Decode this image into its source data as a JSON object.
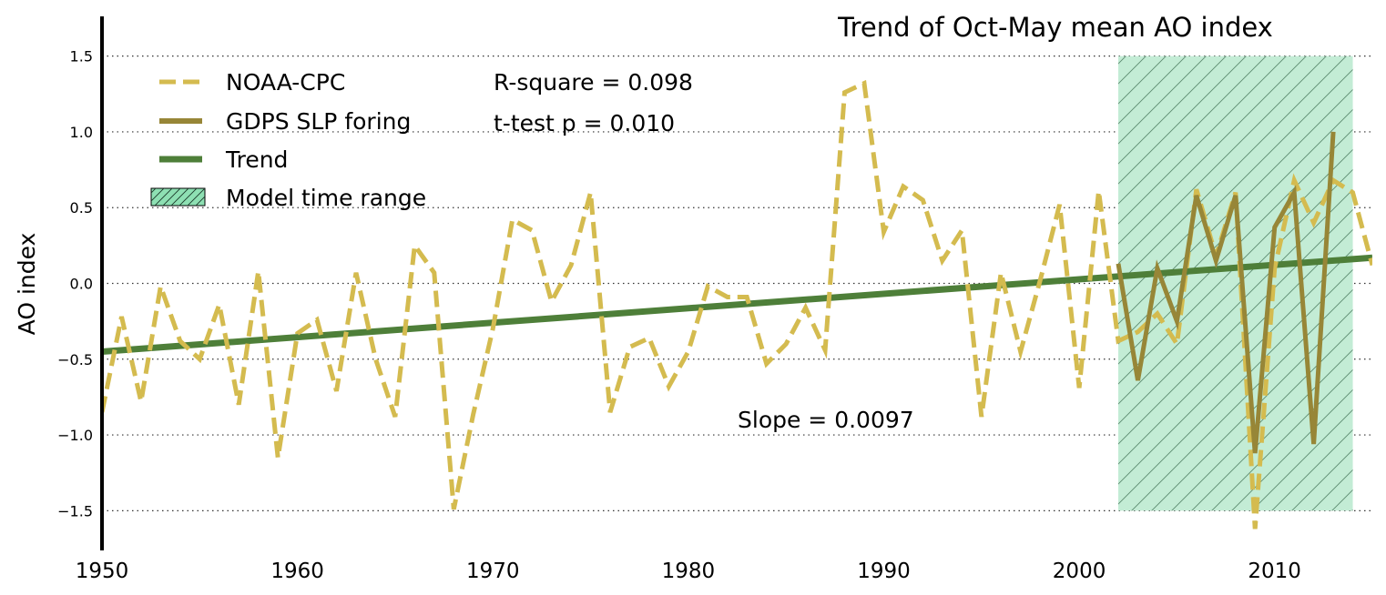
{
  "chart_data": {
    "type": "line",
    "title": "Trend of Oct-May mean AO index",
    "ylabel": "AO index",
    "xlabel": "",
    "xlim": [
      1950,
      2015
    ],
    "ylim": [
      -1.75,
      1.75
    ],
    "x_ticks": [
      1950,
      1960,
      1970,
      1980,
      1990,
      2000,
      2010
    ],
    "x_tick_labels": [
      "1950",
      "1960",
      "1970",
      "1980",
      "1990",
      "2000",
      "2010"
    ],
    "y_ticks": [
      1.5,
      1.0,
      0.5,
      0.0,
      -0.5,
      -1.0,
      -1.5
    ],
    "y_tick_labels": [
      "1.5",
      "1.0",
      "0.5",
      "0.0",
      "−0.5",
      "−1.0",
      "−1.5"
    ],
    "grid": "horizontal dotted",
    "legend_position": "top-left",
    "colors": {
      "noaa": "#d4bb4f",
      "gdps": "#978637",
      "trend": "#4e7f39",
      "model_fill": "#c3ecd5",
      "model_patch": "#8ee0b3"
    },
    "series": [
      {
        "name": "NOAA-CPC",
        "style": "dashed",
        "x": [
          1950,
          1951,
          1952,
          1953,
          1954,
          1955,
          1956,
          1957,
          1958,
          1959,
          1960,
          1961,
          1962,
          1963,
          1964,
          1965,
          1966,
          1967,
          1968,
          1969,
          1970,
          1971,
          1972,
          1973,
          1974,
          1975,
          1976,
          1977,
          1978,
          1979,
          1980,
          1981,
          1982,
          1983,
          1984,
          1985,
          1986,
          1987,
          1988,
          1989,
          1990,
          1991,
          1992,
          1993,
          1994,
          1995,
          1996,
          1997,
          1998,
          1999,
          2000,
          2001,
          2002,
          2003,
          2004,
          2005,
          2006,
          2007,
          2008,
          2009,
          2010,
          2011,
          2012,
          2013,
          2014,
          2015
        ],
        "values": [
          -0.85,
          -0.22,
          -0.78,
          -0.02,
          -0.38,
          -0.5,
          -0.14,
          -0.8,
          0.08,
          -1.15,
          -0.33,
          -0.24,
          -0.71,
          0.07,
          -0.5,
          -0.88,
          0.25,
          0.07,
          -1.49,
          -0.86,
          -0.3,
          0.42,
          0.35,
          -0.12,
          0.12,
          0.6,
          -0.85,
          -0.42,
          -0.36,
          -0.68,
          -0.45,
          -0.02,
          -0.09,
          -0.09,
          -0.53,
          -0.4,
          -0.16,
          -0.44,
          1.26,
          1.32,
          0.34,
          0.64,
          0.55,
          0.15,
          0.35,
          -0.88,
          0.07,
          -0.45,
          0.02,
          0.52,
          -0.69,
          0.61,
          -0.38,
          -0.32,
          -0.2,
          -0.4,
          0.62,
          0.18,
          0.6,
          -1.62,
          0.1,
          0.68,
          0.4,
          0.68,
          0.6,
          0.12
        ]
      },
      {
        "name": "GDPS SLP foring",
        "style": "solid",
        "x": [
          2002,
          2003,
          2004,
          2005,
          2006,
          2007,
          2008,
          2009,
          2010,
          2011,
          2012,
          2013
        ],
        "values": [
          0.13,
          -0.64,
          0.1,
          -0.25,
          0.58,
          0.15,
          0.58,
          -1.12,
          0.37,
          0.6,
          -1.06,
          1.0
        ]
      },
      {
        "name": "Trend",
        "style": "solid",
        "x": [
          1950,
          2015
        ],
        "values": [
          -0.45,
          0.17
        ]
      }
    ],
    "shaded_region": {
      "name": "Model time range",
      "x_start": 2002,
      "x_end": 2014,
      "y_start": -1.5,
      "y_end": 1.5
    },
    "annotations": {
      "r_square": "R-square = 0.098",
      "t_test": "t-test p = 0.010",
      "slope": "Slope = 0.0097"
    }
  }
}
